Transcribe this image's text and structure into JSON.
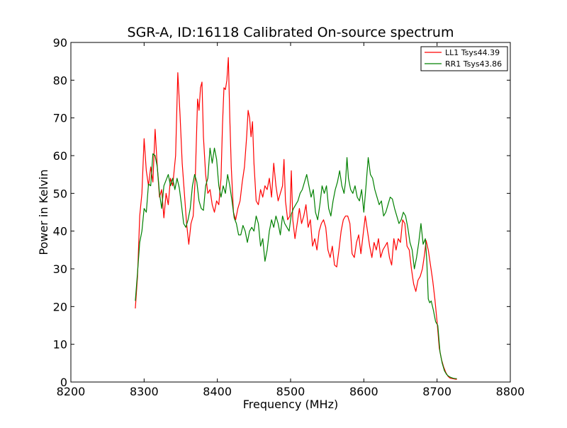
{
  "chart_data": {
    "type": "line",
    "title": "SGR-A, ID:16118 Calibrated On-source spectrum",
    "xlabel": "Frequency (MHz)",
    "ylabel": "Power in Kelvin",
    "xlim": [
      8200,
      8800
    ],
    "ylim": [
      0,
      90
    ],
    "xticks": [
      8200,
      8300,
      8400,
      8500,
      8600,
      8700,
      8800
    ],
    "yticks": [
      0,
      10,
      20,
      30,
      40,
      50,
      60,
      70,
      80,
      90
    ],
    "xtick_labels": [
      "8200",
      "8300",
      "8400",
      "8500",
      "8600",
      "8700",
      "8800"
    ],
    "ytick_labels": [
      "0",
      "10",
      "20",
      "30",
      "40",
      "50",
      "60",
      "70",
      "80",
      "90"
    ],
    "grid": false,
    "legend_position": "top-right",
    "series": [
      {
        "name": "LL1 Tsys44.39",
        "color": "#ff0000",
        "points": [
          [
            8288,
            19.5
          ],
          [
            8291,
            28
          ],
          [
            8294,
            44
          ],
          [
            8297,
            50
          ],
          [
            8300,
            64.5
          ],
          [
            8303,
            56
          ],
          [
            8306,
            52
          ],
          [
            8309,
            57
          ],
          [
            8312,
            53
          ],
          [
            8315,
            67
          ],
          [
            8318,
            57
          ],
          [
            8321,
            49
          ],
          [
            8324,
            51
          ],
          [
            8327,
            43.5
          ],
          [
            8330,
            50
          ],
          [
            8333,
            47
          ],
          [
            8336,
            54
          ],
          [
            8339,
            52
          ],
          [
            8343,
            60
          ],
          [
            8346,
            82
          ],
          [
            8349,
            71
          ],
          [
            8352,
            58
          ],
          [
            8355,
            50
          ],
          [
            8358,
            42
          ],
          [
            8361,
            36.5
          ],
          [
            8364,
            42
          ],
          [
            8367,
            44
          ],
          [
            8370,
            55
          ],
          [
            8373,
            75
          ],
          [
            8375,
            72
          ],
          [
            8377,
            78
          ],
          [
            8379,
            79.5
          ],
          [
            8381,
            65
          ],
          [
            8384,
            55
          ],
          [
            8387,
            50
          ],
          [
            8390,
            51
          ],
          [
            8393,
            47
          ],
          [
            8396,
            45
          ],
          [
            8399,
            48
          ],
          [
            8402,
            47
          ],
          [
            8405,
            54
          ],
          [
            8407,
            68
          ],
          [
            8409,
            78
          ],
          [
            8411,
            77.5
          ],
          [
            8413,
            80
          ],
          [
            8415,
            86
          ],
          [
            8417,
            70
          ],
          [
            8419,
            57
          ],
          [
            8422,
            45
          ],
          [
            8425,
            43
          ],
          [
            8428,
            46
          ],
          [
            8431,
            48
          ],
          [
            8434,
            53
          ],
          [
            8437,
            57
          ],
          [
            8440,
            65
          ],
          [
            8442,
            72
          ],
          [
            8444,
            70
          ],
          [
            8446,
            65
          ],
          [
            8448,
            69
          ],
          [
            8450,
            58
          ],
          [
            8453,
            48
          ],
          [
            8456,
            47
          ],
          [
            8459,
            51
          ],
          [
            8462,
            49
          ],
          [
            8465,
            52
          ],
          [
            8468,
            51
          ],
          [
            8471,
            54
          ],
          [
            8474,
            49
          ],
          [
            8477,
            58
          ],
          [
            8480,
            52
          ],
          [
            8483,
            48
          ],
          [
            8486,
            50
          ],
          [
            8489,
            52
          ],
          [
            8491,
            59
          ],
          [
            8493,
            48
          ],
          [
            8496,
            43
          ],
          [
            8499,
            44
          ],
          [
            8501,
            56
          ],
          [
            8503,
            43
          ],
          [
            8506,
            38
          ],
          [
            8509,
            42
          ],
          [
            8512,
            46
          ],
          [
            8515,
            42
          ],
          [
            8518,
            44
          ],
          [
            8521,
            47
          ],
          [
            8524,
            41
          ],
          [
            8527,
            43
          ],
          [
            8530,
            36
          ],
          [
            8533,
            38
          ],
          [
            8536,
            35
          ],
          [
            8539,
            40
          ],
          [
            8542,
            42
          ],
          [
            8545,
            43
          ],
          [
            8548,
            41
          ],
          [
            8551,
            35
          ],
          [
            8554,
            33
          ],
          [
            8557,
            36
          ],
          [
            8560,
            31
          ],
          [
            8563,
            30.5
          ],
          [
            8566,
            35
          ],
          [
            8569,
            40
          ],
          [
            8572,
            43
          ],
          [
            8575,
            44
          ],
          [
            8578,
            44
          ],
          [
            8581,
            42
          ],
          [
            8584,
            34
          ],
          [
            8587,
            33
          ],
          [
            8590,
            37
          ],
          [
            8593,
            39
          ],
          [
            8596,
            34
          ],
          [
            8599,
            39
          ],
          [
            8602,
            44
          ],
          [
            8605,
            40
          ],
          [
            8608,
            36
          ],
          [
            8611,
            33
          ],
          [
            8614,
            37
          ],
          [
            8617,
            35
          ],
          [
            8620,
            38
          ],
          [
            8623,
            33
          ],
          [
            8626,
            35
          ],
          [
            8629,
            36
          ],
          [
            8632,
            37
          ],
          [
            8635,
            33
          ],
          [
            8638,
            31
          ],
          [
            8641,
            38
          ],
          [
            8644,
            35
          ],
          [
            8647,
            38
          ],
          [
            8650,
            37
          ],
          [
            8653,
            43
          ],
          [
            8656,
            42
          ],
          [
            8659,
            36
          ],
          [
            8662,
            35
          ],
          [
            8665,
            30
          ],
          [
            8668,
            26
          ],
          [
            8671,
            24
          ],
          [
            8674,
            27
          ],
          [
            8677,
            28
          ],
          [
            8680,
            30
          ],
          [
            8683,
            34
          ],
          [
            8685,
            37.5
          ],
          [
            8688,
            35
          ],
          [
            8691,
            31
          ],
          [
            8694,
            27
          ],
          [
            8697,
            22
          ],
          [
            8700,
            16
          ],
          [
            8703,
            9
          ],
          [
            8706,
            6
          ],
          [
            8709,
            4
          ],
          [
            8712,
            2.5
          ],
          [
            8715,
            1.5
          ],
          [
            8718,
            1
          ],
          [
            8721,
            0.9
          ],
          [
            8724,
            0.8
          ],
          [
            8727,
            0.7
          ]
        ]
      },
      {
        "name": "RR1 Tsys43.86",
        "color": "#008000",
        "points": [
          [
            8288,
            21.5
          ],
          [
            8291,
            29
          ],
          [
            8294,
            37
          ],
          [
            8297,
            40
          ],
          [
            8300,
            46
          ],
          [
            8303,
            45
          ],
          [
            8306,
            52.5
          ],
          [
            8309,
            52
          ],
          [
            8312,
            60.5
          ],
          [
            8315,
            60
          ],
          [
            8318,
            57
          ],
          [
            8321,
            50
          ],
          [
            8324,
            46
          ],
          [
            8327,
            52
          ],
          [
            8330,
            53.5
          ],
          [
            8333,
            55
          ],
          [
            8336,
            52
          ],
          [
            8339,
            54
          ],
          [
            8342,
            51
          ],
          [
            8345,
            54
          ],
          [
            8348,
            51.5
          ],
          [
            8351,
            47
          ],
          [
            8354,
            42
          ],
          [
            8357,
            41
          ],
          [
            8360,
            43
          ],
          [
            8363,
            46
          ],
          [
            8366,
            52
          ],
          [
            8369,
            55
          ],
          [
            8372,
            53
          ],
          [
            8375,
            48
          ],
          [
            8378,
            46
          ],
          [
            8381,
            45.5
          ],
          [
            8384,
            52
          ],
          [
            8387,
            54
          ],
          [
            8390,
            62
          ],
          [
            8393,
            58
          ],
          [
            8396,
            62
          ],
          [
            8399,
            59
          ],
          [
            8402,
            52
          ],
          [
            8405,
            49
          ],
          [
            8408,
            52
          ],
          [
            8411,
            50
          ],
          [
            8414,
            55
          ],
          [
            8417,
            52
          ],
          [
            8420,
            48
          ],
          [
            8423,
            43.5
          ],
          [
            8426,
            42
          ],
          [
            8429,
            39
          ],
          [
            8432,
            39
          ],
          [
            8435,
            41.5
          ],
          [
            8438,
            40
          ],
          [
            8441,
            37
          ],
          [
            8444,
            40
          ],
          [
            8447,
            41
          ],
          [
            8450,
            40
          ],
          [
            8453,
            44
          ],
          [
            8456,
            42
          ],
          [
            8459,
            36
          ],
          [
            8462,
            38
          ],
          [
            8465,
            32
          ],
          [
            8468,
            35
          ],
          [
            8471,
            40
          ],
          [
            8474,
            43
          ],
          [
            8477,
            41
          ],
          [
            8480,
            44
          ],
          [
            8483,
            42
          ],
          [
            8486,
            39
          ],
          [
            8489,
            44
          ],
          [
            8492,
            42
          ],
          [
            8495,
            41
          ],
          [
            8498,
            40
          ],
          [
            8501,
            44.5
          ],
          [
            8504,
            46
          ],
          [
            8507,
            47
          ],
          [
            8510,
            48
          ],
          [
            8513,
            50
          ],
          [
            8516,
            51
          ],
          [
            8519,
            53
          ],
          [
            8522,
            55
          ],
          [
            8525,
            52
          ],
          [
            8528,
            49
          ],
          [
            8531,
            51
          ],
          [
            8534,
            45
          ],
          [
            8537,
            43
          ],
          [
            8540,
            47
          ],
          [
            8543,
            52
          ],
          [
            8546,
            50
          ],
          [
            8549,
            52
          ],
          [
            8552,
            46
          ],
          [
            8555,
            44
          ],
          [
            8558,
            48
          ],
          [
            8561,
            51
          ],
          [
            8564,
            53
          ],
          [
            8567,
            56
          ],
          [
            8570,
            52
          ],
          [
            8573,
            50
          ],
          [
            8575,
            53
          ],
          [
            8577,
            59.5
          ],
          [
            8579,
            54
          ],
          [
            8582,
            51
          ],
          [
            8585,
            50
          ],
          [
            8588,
            52
          ],
          [
            8591,
            49
          ],
          [
            8594,
            48
          ],
          [
            8597,
            51
          ],
          [
            8600,
            45
          ],
          [
            8603,
            52
          ],
          [
            8606,
            59.5
          ],
          [
            8609,
            55
          ],
          [
            8612,
            54
          ],
          [
            8615,
            51
          ],
          [
            8618,
            49
          ],
          [
            8621,
            47
          ],
          [
            8624,
            48
          ],
          [
            8627,
            44
          ],
          [
            8630,
            45
          ],
          [
            8633,
            47
          ],
          [
            8636,
            49
          ],
          [
            8639,
            48.5
          ],
          [
            8642,
            46
          ],
          [
            8645,
            44
          ],
          [
            8648,
            42
          ],
          [
            8651,
            43
          ],
          [
            8654,
            45
          ],
          [
            8657,
            44
          ],
          [
            8660,
            41
          ],
          [
            8663,
            37
          ],
          [
            8666,
            35
          ],
          [
            8669,
            30
          ],
          [
            8672,
            33
          ],
          [
            8675,
            37
          ],
          [
            8678,
            42
          ],
          [
            8681,
            36.5
          ],
          [
            8684,
            38
          ],
          [
            8686,
            32
          ],
          [
            8688,
            22
          ],
          [
            8690,
            21
          ],
          [
            8692,
            21.5
          ],
          [
            8695,
            19
          ],
          [
            8698,
            16
          ],
          [
            8701,
            15
          ],
          [
            8704,
            8
          ],
          [
            8707,
            5
          ],
          [
            8710,
            3
          ],
          [
            8713,
            2
          ],
          [
            8716,
            1.5
          ],
          [
            8719,
            1.2
          ],
          [
            8722,
            1
          ],
          [
            8725,
            0.9
          ],
          [
            8727,
            0.9
          ]
        ]
      }
    ]
  }
}
